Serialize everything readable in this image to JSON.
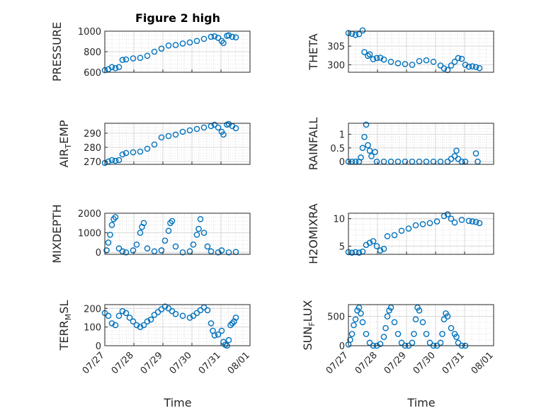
{
  "figure": {
    "title": "Figure 2 high",
    "marker_color": "#0072BD",
    "axis_color": "#262626",
    "grid_color": "#d8d8d8"
  },
  "chart_data": [
    {
      "type": "scatter",
      "id": "pressure",
      "ylabel": "PRESSURE",
      "ylim": [
        600,
        1000
      ],
      "yticks": [
        600,
        800,
        1000
      ],
      "ytick_labels": [
        "600",
        "800",
        "1000"
      ],
      "xlim": [
        0,
        4.1
      ],
      "xtick_labels": [],
      "points": [
        [
          0,
          620
        ],
        [
          0.1,
          630
        ],
        [
          0.2,
          650
        ],
        [
          0.3,
          640
        ],
        [
          0.4,
          650
        ],
        [
          0.5,
          720
        ],
        [
          0.6,
          725
        ],
        [
          0.8,
          735
        ],
        [
          1.0,
          740
        ],
        [
          1.2,
          760
        ],
        [
          1.4,
          800
        ],
        [
          1.6,
          830
        ],
        [
          1.8,
          860
        ],
        [
          2.0,
          865
        ],
        [
          2.2,
          880
        ],
        [
          2.4,
          890
        ],
        [
          2.6,
          905
        ],
        [
          2.8,
          925
        ],
        [
          3.0,
          945
        ],
        [
          3.1,
          950
        ],
        [
          3.2,
          935
        ],
        [
          3.3,
          905
        ],
        [
          3.35,
          885
        ],
        [
          3.45,
          955
        ],
        [
          3.5,
          960
        ],
        [
          3.6,
          945
        ],
        [
          3.7,
          940
        ]
      ]
    },
    {
      "type": "scatter",
      "id": "theta",
      "ylabel": "THETA",
      "ylim": [
        298,
        309
      ],
      "yticks": [
        300,
        305
      ],
      "ytick_labels": [
        "300",
        "305"
      ],
      "xlim": [
        0,
        4.1
      ],
      "xtick_labels": [],
      "points": [
        [
          0,
          308.5
        ],
        [
          0.1,
          308.3
        ],
        [
          0.2,
          308.0
        ],
        [
          0.3,
          308.2
        ],
        [
          0.4,
          309.2
        ],
        [
          0.45,
          303.4
        ],
        [
          0.55,
          302.4
        ],
        [
          0.6,
          302.8
        ],
        [
          0.7,
          301.5
        ],
        [
          0.8,
          301.8
        ],
        [
          0.9,
          301.9
        ],
        [
          1.0,
          301.4
        ],
        [
          1.2,
          300.8
        ],
        [
          1.4,
          300.4
        ],
        [
          1.6,
          300.2
        ],
        [
          1.8,
          300.0
        ],
        [
          2.0,
          301.0
        ],
        [
          2.2,
          301.2
        ],
        [
          2.4,
          300.8
        ],
        [
          2.6,
          299.8
        ],
        [
          2.7,
          299.0
        ],
        [
          2.8,
          298.6
        ],
        [
          2.9,
          299.8
        ],
        [
          3.0,
          300.8
        ],
        [
          3.1,
          301.8
        ],
        [
          3.2,
          301.6
        ],
        [
          3.3,
          300.0
        ],
        [
          3.4,
          299.5
        ],
        [
          3.5,
          299.6
        ],
        [
          3.6,
          299.4
        ],
        [
          3.7,
          299.1
        ]
      ]
    },
    {
      "type": "scatter",
      "id": "air_temp",
      "ylabel": "AIR_TEMP",
      "ylim": [
        268,
        297
      ],
      "yticks": [
        270,
        280,
        290
      ],
      "ytick_labels": [
        "270",
        "280",
        "290"
      ],
      "xlim": [
        0,
        4.1
      ],
      "xtick_labels": [],
      "points": [
        [
          0,
          269
        ],
        [
          0.1,
          270
        ],
        [
          0.2,
          271
        ],
        [
          0.3,
          270.5
        ],
        [
          0.4,
          271
        ],
        [
          0.5,
          275
        ],
        [
          0.6,
          276
        ],
        [
          0.8,
          276.5
        ],
        [
          1.0,
          277
        ],
        [
          1.2,
          279
        ],
        [
          1.4,
          282
        ],
        [
          1.6,
          287
        ],
        [
          1.8,
          288
        ],
        [
          2.0,
          289
        ],
        [
          2.2,
          291
        ],
        [
          2.4,
          292
        ],
        [
          2.6,
          293
        ],
        [
          2.8,
          294
        ],
        [
          3.0,
          295
        ],
        [
          3.1,
          296
        ],
        [
          3.2,
          294
        ],
        [
          3.3,
          291
        ],
        [
          3.35,
          289
        ],
        [
          3.45,
          296
        ],
        [
          3.5,
          296.5
        ],
        [
          3.6,
          295
        ],
        [
          3.7,
          293.5
        ]
      ]
    },
    {
      "type": "scatter",
      "id": "rainfall",
      "ylabel": "RAINFALL",
      "ylim": [
        -0.1,
        1.4
      ],
      "yticks": [
        0,
        0.5,
        1
      ],
      "ytick_labels": [
        "0",
        "0.5",
        "1"
      ],
      "xlim": [
        0,
        4.1
      ],
      "xtick_labels": [],
      "points": [
        [
          0,
          0
        ],
        [
          0.1,
          0
        ],
        [
          0.2,
          0
        ],
        [
          0.3,
          0
        ],
        [
          0.35,
          0.15
        ],
        [
          0.4,
          0.5
        ],
        [
          0.45,
          0.9
        ],
        [
          0.5,
          1.35
        ],
        [
          0.55,
          0.6
        ],
        [
          0.6,
          0.4
        ],
        [
          0.65,
          0.2
        ],
        [
          0.75,
          0.35
        ],
        [
          0.8,
          0
        ],
        [
          1.0,
          0
        ],
        [
          1.2,
          0
        ],
        [
          1.4,
          0
        ],
        [
          1.6,
          0
        ],
        [
          1.8,
          0
        ],
        [
          2.0,
          0
        ],
        [
          2.2,
          0
        ],
        [
          2.4,
          0
        ],
        [
          2.6,
          0
        ],
        [
          2.8,
          0
        ],
        [
          2.9,
          0.1
        ],
        [
          3.0,
          0.2
        ],
        [
          3.05,
          0.4
        ],
        [
          3.1,
          0.1
        ],
        [
          3.2,
          0
        ],
        [
          3.3,
          0
        ],
        [
          3.6,
          0.3
        ],
        [
          3.65,
          0
        ]
      ]
    },
    {
      "type": "scatter",
      "id": "mixdepth",
      "ylabel": "MIXDEPTH",
      "ylim": [
        -100,
        2000
      ],
      "yticks": [
        0,
        1000,
        2000
      ],
      "ytick_labels": [
        "0",
        "1000",
        "2000"
      ],
      "xlim": [
        0,
        4.1
      ],
      "xtick_labels": [],
      "points": [
        [
          0.05,
          100
        ],
        [
          0.1,
          500
        ],
        [
          0.15,
          900
        ],
        [
          0.2,
          1400
        ],
        [
          0.25,
          1700
        ],
        [
          0.3,
          1800
        ],
        [
          0.4,
          200
        ],
        [
          0.5,
          50
        ],
        [
          0.6,
          0
        ],
        [
          0.8,
          100
        ],
        [
          0.9,
          400
        ],
        [
          1.0,
          1000
        ],
        [
          1.05,
          1300
        ],
        [
          1.1,
          1500
        ],
        [
          1.2,
          200
        ],
        [
          1.4,
          50
        ],
        [
          1.6,
          100
        ],
        [
          1.7,
          600
        ],
        [
          1.8,
          1100
        ],
        [
          1.85,
          1500
        ],
        [
          1.9,
          1600
        ],
        [
          2.0,
          300
        ],
        [
          2.2,
          0
        ],
        [
          2.4,
          50
        ],
        [
          2.5,
          400
        ],
        [
          2.6,
          900
        ],
        [
          2.65,
          1200
        ],
        [
          2.7,
          1700
        ],
        [
          2.8,
          1000
        ],
        [
          2.9,
          300
        ],
        [
          3.0,
          50
        ],
        [
          3.2,
          0
        ],
        [
          3.3,
          100
        ],
        [
          3.5,
          0
        ],
        [
          3.7,
          20
        ]
      ]
    },
    {
      "type": "scatter",
      "id": "h2omixra",
      "ylabel": "H2OMIXRA",
      "ylim": [
        3.5,
        11
      ],
      "yticks": [
        5,
        10
      ],
      "ytick_labels": [
        "5",
        "10"
      ],
      "xlim": [
        0,
        4.1
      ],
      "xtick_labels": [],
      "points": [
        [
          0,
          3.9
        ],
        [
          0.1,
          3.8
        ],
        [
          0.2,
          3.9
        ],
        [
          0.3,
          3.8
        ],
        [
          0.4,
          4.0
        ],
        [
          0.5,
          5.2
        ],
        [
          0.6,
          5.6
        ],
        [
          0.7,
          5.9
        ],
        [
          0.8,
          5.0
        ],
        [
          0.9,
          4.2
        ],
        [
          1.0,
          4.5
        ],
        [
          1.1,
          6.8
        ],
        [
          1.3,
          7.0
        ],
        [
          1.5,
          7.8
        ],
        [
          1.7,
          8.2
        ],
        [
          1.9,
          8.8
        ],
        [
          2.1,
          9.0
        ],
        [
          2.3,
          9.2
        ],
        [
          2.5,
          9.5
        ],
        [
          2.7,
          10.5
        ],
        [
          2.8,
          10.8
        ],
        [
          2.9,
          10.0
        ],
        [
          3.0,
          9.3
        ],
        [
          3.2,
          9.8
        ],
        [
          3.4,
          9.6
        ],
        [
          3.5,
          9.5
        ],
        [
          3.6,
          9.4
        ],
        [
          3.7,
          9.2
        ]
      ]
    },
    {
      "type": "scatter",
      "id": "terr_msl",
      "ylabel": "TERR_MSL",
      "ylim": [
        0,
        220
      ],
      "yticks": [
        0,
        100,
        200
      ],
      "ytick_labels": [
        "0",
        "100",
        "200"
      ],
      "xlim": [
        0,
        4.1
      ],
      "xtick_labels": [
        "07/27",
        "07/28",
        "07/29",
        "07/30",
        "07/31",
        "08/01"
      ],
      "points": [
        [
          0,
          175
        ],
        [
          0.1,
          160
        ],
        [
          0.2,
          120
        ],
        [
          0.3,
          110
        ],
        [
          0.4,
          160
        ],
        [
          0.5,
          185
        ],
        [
          0.6,
          175
        ],
        [
          0.7,
          150
        ],
        [
          0.8,
          130
        ],
        [
          0.9,
          110
        ],
        [
          1.0,
          100
        ],
        [
          1.1,
          110
        ],
        [
          1.2,
          130
        ],
        [
          1.3,
          140
        ],
        [
          1.4,
          165
        ],
        [
          1.5,
          180
        ],
        [
          1.6,
          195
        ],
        [
          1.7,
          210
        ],
        [
          1.8,
          200
        ],
        [
          1.9,
          185
        ],
        [
          2.0,
          170
        ],
        [
          2.2,
          160
        ],
        [
          2.4,
          150
        ],
        [
          2.5,
          160
        ],
        [
          2.6,
          175
        ],
        [
          2.7,
          190
        ],
        [
          2.8,
          205
        ],
        [
          2.9,
          190
        ],
        [
          3.0,
          120
        ],
        [
          3.05,
          80
        ],
        [
          3.1,
          55
        ],
        [
          3.2,
          60
        ],
        [
          3.3,
          80
        ],
        [
          3.35,
          20
        ],
        [
          3.4,
          5
        ],
        [
          3.45,
          0
        ],
        [
          3.5,
          30
        ],
        [
          3.55,
          110
        ],
        [
          3.6,
          120
        ],
        [
          3.65,
          130
        ],
        [
          3.7,
          150
        ]
      ]
    },
    {
      "type": "scatter",
      "id": "sun_flux",
      "ylabel": "SUN_FLUX",
      "ylim": [
        0,
        700
      ],
      "yticks": [
        0,
        500
      ],
      "ytick_labels": [
        "0",
        "500"
      ],
      "xlim": [
        0,
        4.1
      ],
      "xtick_labels": [
        "07/27",
        "07/28",
        "07/29",
        "07/30",
        "07/31",
        "08/01"
      ],
      "points": [
        [
          0,
          20
        ],
        [
          0.05,
          100
        ],
        [
          0.1,
          200
        ],
        [
          0.15,
          350
        ],
        [
          0.2,
          450
        ],
        [
          0.25,
          600
        ],
        [
          0.3,
          650
        ],
        [
          0.35,
          550
        ],
        [
          0.4,
          400
        ],
        [
          0.5,
          200
        ],
        [
          0.6,
          50
        ],
        [
          0.7,
          0
        ],
        [
          0.8,
          0
        ],
        [
          0.9,
          30
        ],
        [
          1.0,
          150
        ],
        [
          1.05,
          300
        ],
        [
          1.1,
          500
        ],
        [
          1.15,
          600
        ],
        [
          1.2,
          650
        ],
        [
          1.3,
          400
        ],
        [
          1.4,
          200
        ],
        [
          1.5,
          50
        ],
        [
          1.6,
          0
        ],
        [
          1.7,
          0
        ],
        [
          1.8,
          50
        ],
        [
          1.85,
          200
        ],
        [
          1.9,
          450
        ],
        [
          1.95,
          650
        ],
        [
          2.0,
          600
        ],
        [
          2.1,
          400
        ],
        [
          2.2,
          200
        ],
        [
          2.3,
          50
        ],
        [
          2.4,
          0
        ],
        [
          2.5,
          0
        ],
        [
          2.6,
          50
        ],
        [
          2.65,
          200
        ],
        [
          2.7,
          450
        ],
        [
          2.75,
          550
        ],
        [
          2.8,
          500
        ],
        [
          2.9,
          300
        ],
        [
          3.0,
          200
        ],
        [
          3.05,
          150
        ],
        [
          3.1,
          50
        ],
        [
          3.2,
          0
        ],
        [
          3.3,
          0
        ]
      ]
    }
  ],
  "xlabels": [
    "Time",
    "Time"
  ]
}
